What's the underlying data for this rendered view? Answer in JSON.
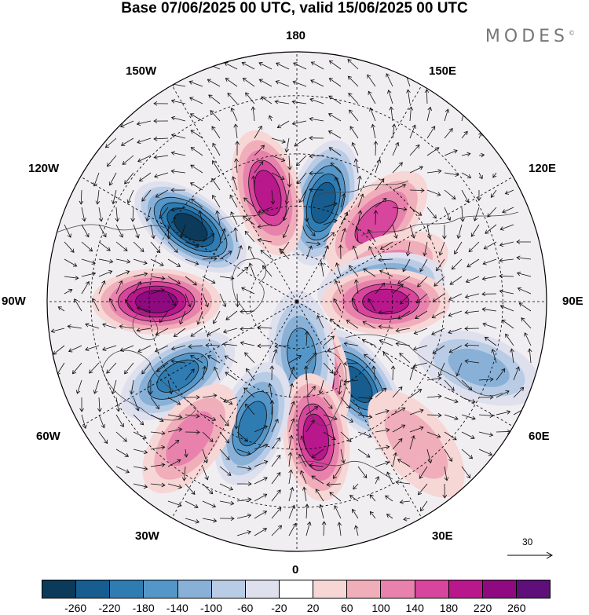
{
  "title": "Base 07/06/2025 00 UTC, valid 15/06/2025 00 UTC",
  "logo": "MODES",
  "logo_mark": "©",
  "longitude_labels": {
    "lon_180": "180",
    "lon_150E": "150E",
    "lon_120E": "120E",
    "lon_90E": "90E",
    "lon_60E": "60E",
    "lon_30E": "30E",
    "lon_0": "0",
    "lon_30W": "30W",
    "lon_60W": "60W",
    "lon_90W": "90W",
    "lon_120W": "120W",
    "lon_150W": "150W"
  },
  "reference_vector": "30",
  "colorbar": {
    "colors": [
      "#0b3a5b",
      "#175d8f",
      "#2f7cb3",
      "#5596c8",
      "#89b1d8",
      "#b9cce6",
      "#dfe0ee",
      "#ffffff",
      "#f7d6d6",
      "#f0aeba",
      "#e882ad",
      "#d7459c",
      "#b8188c",
      "#8f0a80",
      "#5e0f7a"
    ],
    "labels": [
      "-260",
      "-220",
      "-180",
      "-140",
      "-100",
      "-60",
      "-20",
      "20",
      "60",
      "100",
      "140",
      "180",
      "220",
      "260"
    ]
  },
  "anomaly_centers": [
    {
      "lon": 165,
      "lat": 58,
      "value": -240
    },
    {
      "lon": -165,
      "lat": 55,
      "value": 200
    },
    {
      "lon": -125,
      "lat": 50,
      "value": -260
    },
    {
      "lon": -90,
      "lat": 47,
      "value": 240
    },
    {
      "lon": -58,
      "lat": 47,
      "value": -200
    },
    {
      "lon": 135,
      "lat": 55,
      "value": 140
    },
    {
      "lon": 110,
      "lat": 60,
      "value": 120
    },
    {
      "lon": 100,
      "lat": 63,
      "value": -200
    },
    {
      "lon": 90,
      "lat": 62,
      "value": 180
    },
    {
      "lon": 70,
      "lat": 33,
      "value": -100
    },
    {
      "lon": 36,
      "lat": 58,
      "value": -240
    },
    {
      "lon": 15,
      "lat": 68,
      "value": 200
    },
    {
      "lon": 5,
      "lat": 73,
      "value": -140
    },
    {
      "lon": 8,
      "lat": 48,
      "value": 180
    },
    {
      "lon": -20,
      "lat": 50,
      "value": -180
    },
    {
      "lon": -38,
      "lat": 38,
      "value": 100
    },
    {
      "lon": 40,
      "lat": 35,
      "value": 80
    }
  ]
}
